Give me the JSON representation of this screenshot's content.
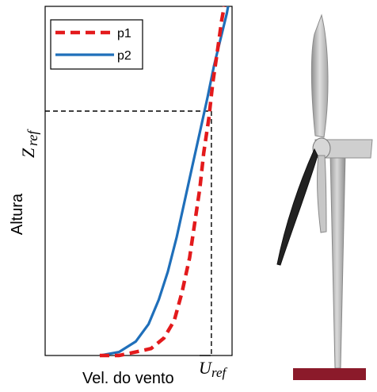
{
  "chart_data": {
    "type": "line",
    "title": "",
    "xlabel": "Vel. do vento",
    "ylabel": "Altura",
    "reference_labels": {
      "z_main": "Z",
      "z_sub": "ref",
      "u_main": "U",
      "u_sub": "ref"
    },
    "series": [
      {
        "name": "p1",
        "color": "#e31a1c",
        "style": "dashed",
        "points": [
          [
            0.0,
            0.0
          ],
          [
            0.15,
            0.0
          ],
          [
            0.28,
            0.01
          ],
          [
            0.4,
            0.02
          ],
          [
            0.5,
            0.05
          ],
          [
            0.58,
            0.1
          ],
          [
            0.64,
            0.18
          ],
          [
            0.7,
            0.28
          ],
          [
            0.74,
            0.38
          ],
          [
            0.78,
            0.48
          ],
          [
            0.81,
            0.58
          ],
          [
            0.85,
            0.68
          ],
          [
            0.88,
            0.78
          ],
          [
            0.92,
            0.88
          ],
          [
            0.95,
            0.96
          ],
          [
            0.97,
            1.0
          ]
        ]
      },
      {
        "name": "p2",
        "color": "#1f6fba",
        "style": "solid",
        "points": [
          [
            0.0,
            0.0
          ],
          [
            0.15,
            0.01
          ],
          [
            0.28,
            0.04
          ],
          [
            0.38,
            0.09
          ],
          [
            0.46,
            0.16
          ],
          [
            0.53,
            0.24
          ],
          [
            0.6,
            0.34
          ],
          [
            0.66,
            0.44
          ],
          [
            0.72,
            0.54
          ],
          [
            0.78,
            0.64
          ],
          [
            0.84,
            0.74
          ],
          [
            0.89,
            0.83
          ],
          [
            0.95,
            0.92
          ],
          [
            0.99,
            0.98
          ],
          [
            1.0,
            1.0
          ]
        ]
      }
    ],
    "reference_point": {
      "x": 0.87,
      "y": 0.7
    },
    "legend": {
      "placement": "top-left",
      "entries": [
        "p1",
        "p2"
      ]
    }
  },
  "illustration": {
    "name": "wind-turbine",
    "base_color": "#8b1a2a",
    "tower_color": "#b8b8b8",
    "blade_color": "#c9c9c9",
    "dark_blade_color": "#222222"
  }
}
